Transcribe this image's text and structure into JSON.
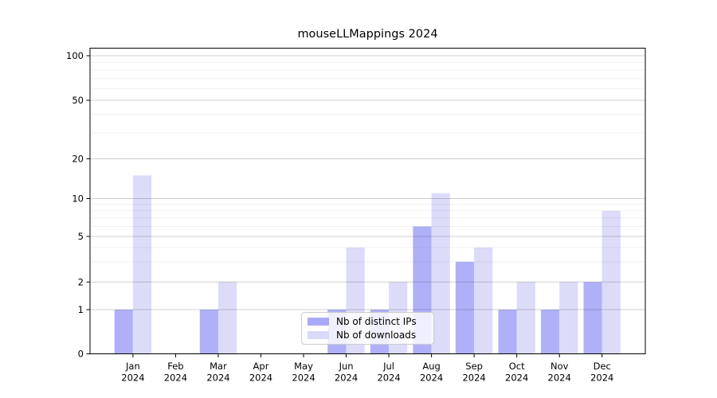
{
  "chart_data": {
    "type": "bar",
    "title": "mouseLLMappings 2024",
    "categories": [
      "Jan 2024",
      "Feb 2024",
      "Mar 2024",
      "Apr 2024",
      "May 2024",
      "Jun 2024",
      "Jul 2024",
      "Aug 2024",
      "Sep 2024",
      "Oct 2024",
      "Nov 2024",
      "Dec 2024"
    ],
    "x_tick_months": [
      "Jan",
      "Feb",
      "Mar",
      "Apr",
      "May",
      "Jun",
      "Jul",
      "Aug",
      "Sep",
      "Oct",
      "Nov",
      "Dec"
    ],
    "x_tick_year": "2024",
    "series": [
      {
        "name": "Nb of distinct IPs",
        "color": "#a9a9f9",
        "values": [
          1,
          0,
          1,
          0,
          0,
          1,
          1,
          6,
          3,
          1,
          1,
          2
        ]
      },
      {
        "name": "Nb of downloads",
        "color": "#d9d9f9",
        "values": [
          15,
          0,
          2,
          0,
          0,
          4,
          2,
          11,
          4,
          2,
          2,
          8
        ]
      }
    ],
    "y_axis": {
      "scale": "symlog",
      "tick_labels": [
        "0",
        "1",
        "2",
        "5",
        "10",
        "20",
        "50",
        "100"
      ],
      "tick_values": [
        0,
        1,
        2,
        5,
        10,
        20,
        50,
        100
      ],
      "minor_tick_values": [
        3,
        4,
        6,
        7,
        8,
        9,
        30,
        40,
        60,
        70,
        80,
        90
      ],
      "ylim": [
        0,
        112
      ]
    },
    "grid": true,
    "legend_position": "lower center"
  }
}
